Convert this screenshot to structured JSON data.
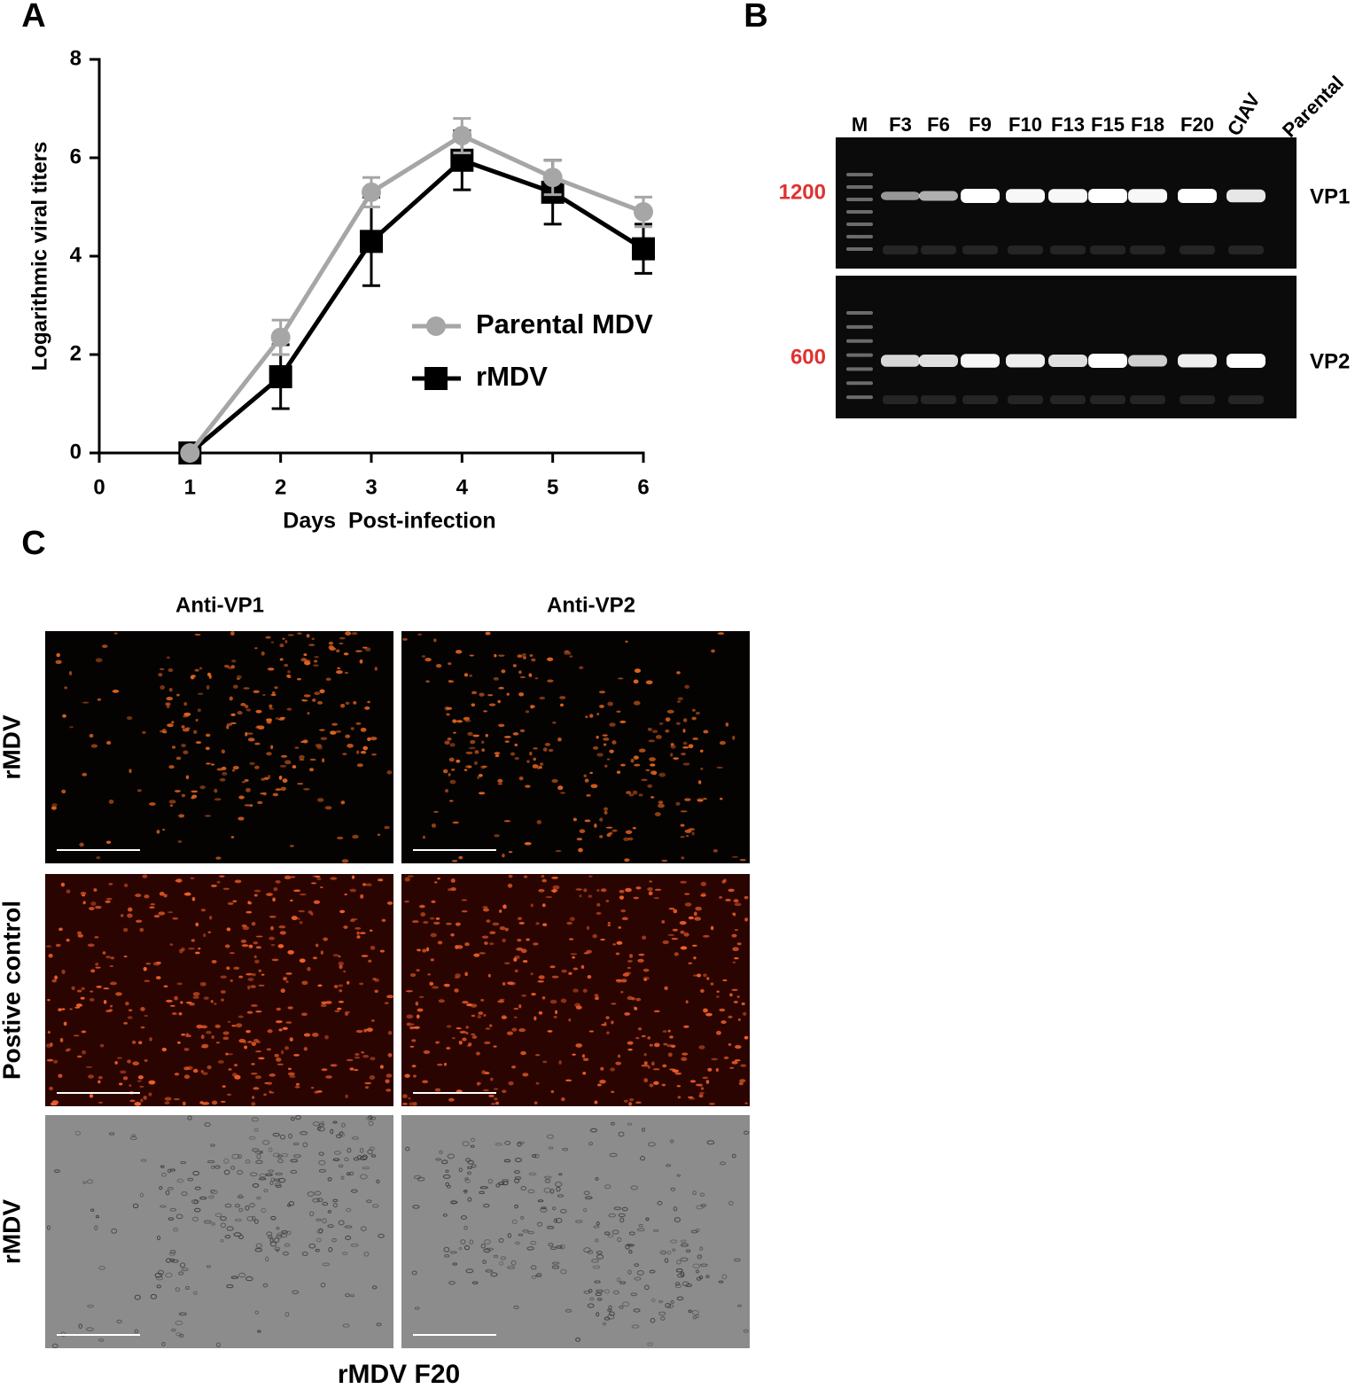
{
  "panel_labels": [
    "A",
    "B",
    "C"
  ],
  "chart_data": {
    "type": "line",
    "xlabel": "Days  Post-infection",
    "ylabel": "Logarithmic viral titers",
    "x": [
      1,
      2,
      3,
      4,
      5,
      6
    ],
    "xlim": [
      0,
      6
    ],
    "xticks": [
      0,
      1,
      2,
      3,
      4,
      5,
      6
    ],
    "ylim": [
      0,
      8
    ],
    "yticks": [
      0,
      2,
      4,
      6,
      8
    ],
    "series": [
      {
        "name": "Parental MDV",
        "color": "#a6a6a6",
        "marker": "circle",
        "values": [
          0,
          2.35,
          5.3,
          6.45,
          5.6,
          4.9
        ],
        "errors": [
          0,
          0.35,
          0.3,
          0.35,
          0.35,
          0.3
        ]
      },
      {
        "name": "rMDV",
        "color": "#000000",
        "marker": "square",
        "values": [
          0,
          1.55,
          4.3,
          5.95,
          5.3,
          4.15
        ],
        "errors": [
          0,
          0.65,
          0.9,
          0.6,
          0.65,
          0.5
        ]
      }
    ]
  },
  "gel": {
    "lanes": [
      "M",
      "F3",
      "F6",
      "F9",
      "F10",
      "F13",
      "F15",
      "F18",
      "F20",
      "CIAV",
      "Parental"
    ],
    "size_labels": [
      "1200",
      "600"
    ],
    "band_labels": [
      "VP1",
      "VP2"
    ]
  },
  "micrographs": {
    "columns": [
      "Anti-VP1",
      "Anti-VP2"
    ],
    "rows": [
      "rMDV",
      "Postive control",
      "rMDV"
    ],
    "caption": "rMDV F20"
  }
}
